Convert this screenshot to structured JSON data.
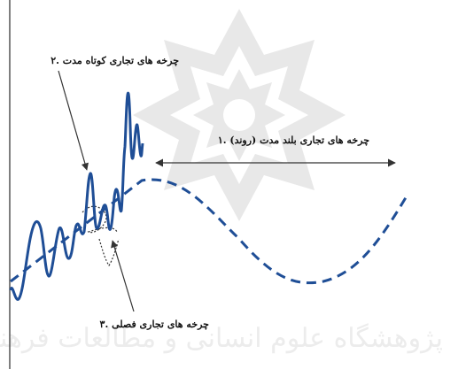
{
  "labels": {
    "long_term": "۱. چرخه های تجاری بلند مدت (روند)",
    "short_term": "۲. چرخه های تجاری کوتاه مدت",
    "seasonal": "۳. چرخه های تجاری فصلی"
  },
  "watermark": {
    "text": "پژوهشگاه علوم انسانی و مطالعات فرهنگی"
  },
  "colors": {
    "curve": "#1f4e96",
    "dashed_trend": "#1f4e96",
    "seasonal_dots": "#333333",
    "arrows": "#333333",
    "watermark": "#e6e6e6"
  }
}
